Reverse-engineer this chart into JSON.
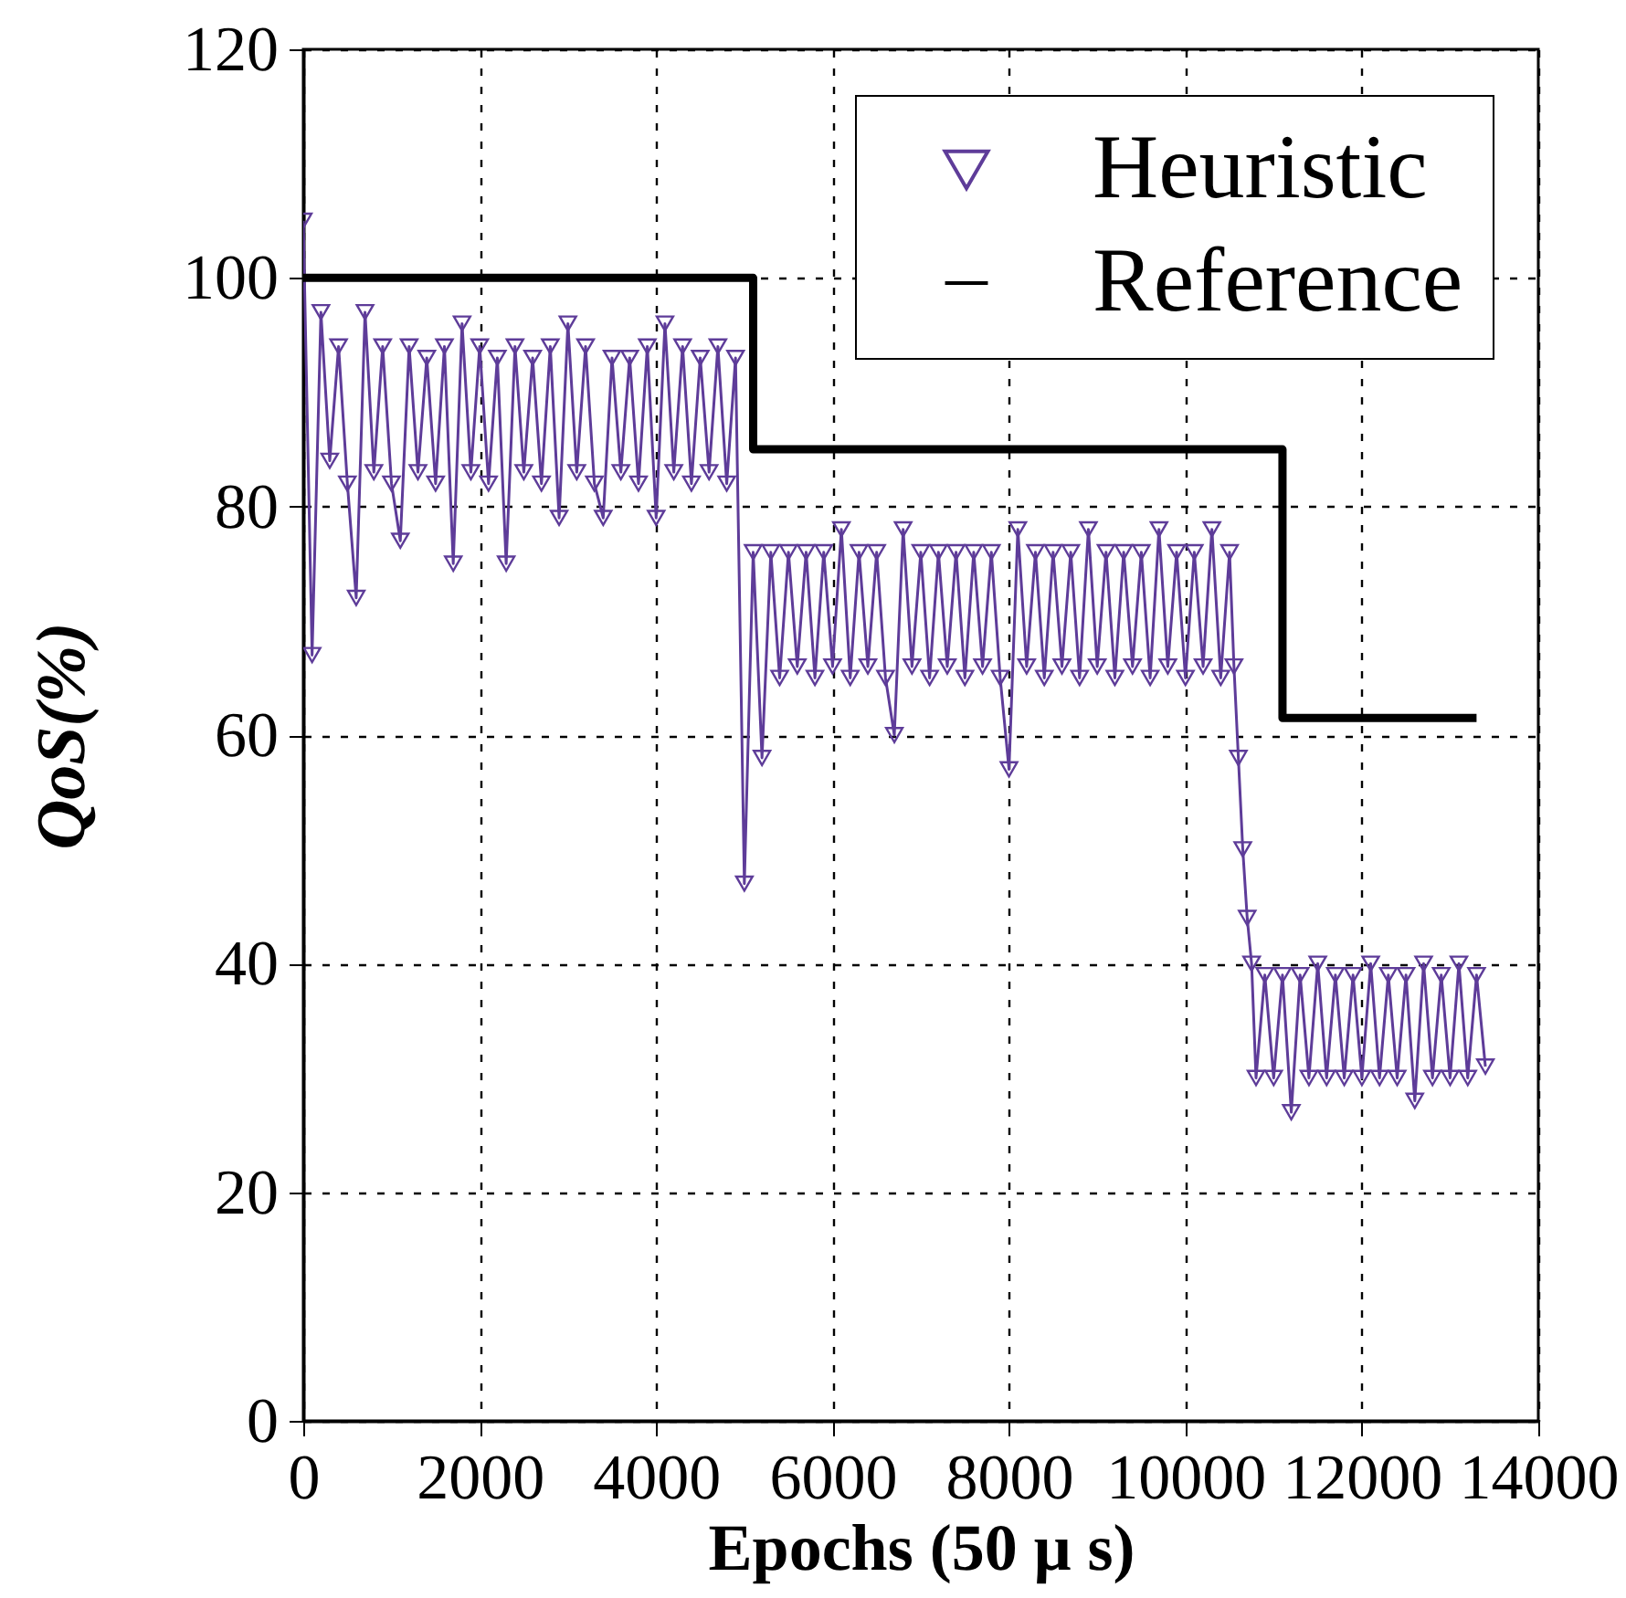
{
  "chart_data": {
    "type": "line",
    "xlabel": "Epochs (50 μ s)",
    "ylabel": "QoS(%)",
    "xlim": [
      0,
      14000
    ],
    "xticks": [
      0,
      2000,
      4000,
      6000,
      8000,
      10000,
      12000,
      14000
    ],
    "ylim": [
      0,
      120
    ],
    "yticks": [
      0,
      20,
      40,
      60,
      80,
      100,
      120
    ],
    "grid": true,
    "legend": "top right",
    "line_style": "solid",
    "series": [
      {
        "name": "Heuristic",
        "color": "#5e3c99",
        "type": "line",
        "marker": "triangle",
        "x": [
          0,
          100,
          200,
          300,
          400,
          500,
          600,
          700,
          800,
          900,
          1000,
          1100,
          1200,
          1300,
          1400,
          1500,
          1600,
          1700,
          1800,
          1900,
          2000,
          2100,
          2200,
          2300,
          2400,
          2500,
          2600,
          2700,
          2800,
          2900,
          3000,
          3100,
          3200,
          3300,
          3400,
          3500,
          3600,
          3700,
          3800,
          3900,
          4000,
          4100,
          4200,
          4300,
          4400,
          4500,
          4600,
          4700,
          4800,
          4900,
          5000,
          5100,
          5200,
          5300,
          5400,
          5500,
          5600,
          5700,
          5800,
          5900,
          6000,
          6100,
          6200,
          6300,
          6400,
          6500,
          6600,
          6700,
          6800,
          6900,
          7000,
          7100,
          7200,
          7300,
          7400,
          7500,
          7600,
          7700,
          7800,
          7900,
          8000,
          8100,
          8200,
          8300,
          8400,
          8500,
          8600,
          8700,
          8800,
          8900,
          9000,
          9100,
          9200,
          9300,
          9400,
          9500,
          9600,
          9700,
          9800,
          9900,
          10000,
          10100,
          10200,
          10300,
          10400,
          10500,
          10550,
          10600,
          10650,
          10700,
          10750,
          10800,
          10900,
          11000,
          11100,
          11200,
          11300,
          11400,
          11500,
          11600,
          11700,
          11800,
          11900,
          12000,
          12100,
          12200,
          12300,
          12400,
          12500,
          12600,
          12700,
          12800,
          12900,
          13000,
          13100,
          13200,
          13300,
          13400
        ],
        "values": [
          105,
          67,
          97,
          84,
          94,
          82,
          72,
          97,
          83,
          94,
          82,
          77,
          94,
          83,
          93,
          82,
          94,
          75,
          96,
          83,
          94,
          82,
          93,
          75,
          94,
          83,
          93,
          82,
          94,
          79,
          96,
          83,
          94,
          82,
          79,
          93,
          83,
          93,
          82,
          94,
          79,
          96,
          83,
          94,
          82,
          93,
          83,
          94,
          82,
          93,
          47,
          76,
          58,
          76,
          65,
          76,
          66,
          76,
          65,
          76,
          66,
          78,
          65,
          76,
          66,
          76,
          65,
          60,
          78,
          66,
          76,
          65,
          76,
          66,
          76,
          65,
          76,
          66,
          76,
          65,
          57,
          78,
          66,
          76,
          65,
          76,
          66,
          76,
          65,
          78,
          66,
          76,
          65,
          76,
          66,
          76,
          65,
          78,
          66,
          76,
          65,
          76,
          66,
          78,
          65,
          76,
          66,
          58,
          50,
          44,
          40,
          30,
          39,
          30,
          39,
          27,
          39,
          30,
          40,
          30,
          39,
          30,
          39,
          30,
          40,
          30,
          39,
          30,
          39,
          28,
          40,
          30,
          39,
          30,
          40,
          30,
          39,
          31
        ]
      },
      {
        "name": "Reference",
        "color": "#000000",
        "type": "step",
        "x": [
          0,
          5100,
          11100,
          13300
        ],
        "values": [
          100,
          85,
          61.5,
          61.5
        ]
      }
    ]
  }
}
